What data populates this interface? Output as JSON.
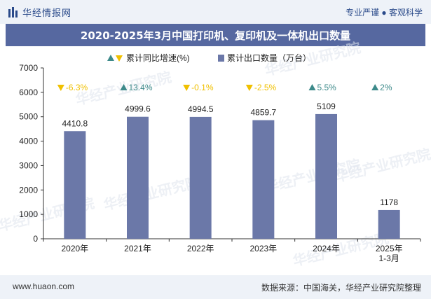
{
  "header": {
    "brand": "华经情报网",
    "tagline": "专业严谨 ● 客观科学"
  },
  "footer": {
    "url": "www.huaon.com",
    "source": "数据来源：中国海关，华经产业研究院整理"
  },
  "watermark": "华经产业研究院",
  "colors": {
    "bar": "#6b78a8",
    "up": "#3d8a8a",
    "down": "#f0c000",
    "title_bg": "#5668a0"
  },
  "chart_data": {
    "type": "bar",
    "title": "2020-2025年3月中国打印机、复印机及一体机出口数量",
    "categories": [
      "2020年",
      "2021年",
      "2022年",
      "2023年",
      "2024年",
      "2025年 1-3月"
    ],
    "series": [
      {
        "name": "累计出口数量（万台）",
        "values": [
          4410.8,
          4999.6,
          4994.5,
          4859.7,
          5109,
          1178
        ],
        "labels": [
          "4410.8",
          "4999.6",
          "4994.5",
          "4859.7",
          "5109",
          "1178"
        ]
      },
      {
        "name": "累计同比增速(%)",
        "values": [
          -6.3,
          13.4,
          -0.1,
          -2.5,
          5.5,
          2
        ],
        "labels": [
          "-6.3%",
          "13.4%",
          "-0.1%",
          "-2.5%",
          "5.5%",
          "2%"
        ]
      }
    ],
    "yticks": [
      "0",
      "1000",
      "2000",
      "3000",
      "4000",
      "5000",
      "6000",
      "7000"
    ],
    "ylim": [
      0,
      7000
    ],
    "legend": [
      "累计同比增速(%)",
      "累计出口数量（万台）"
    ],
    "legend_position": "top-center"
  }
}
